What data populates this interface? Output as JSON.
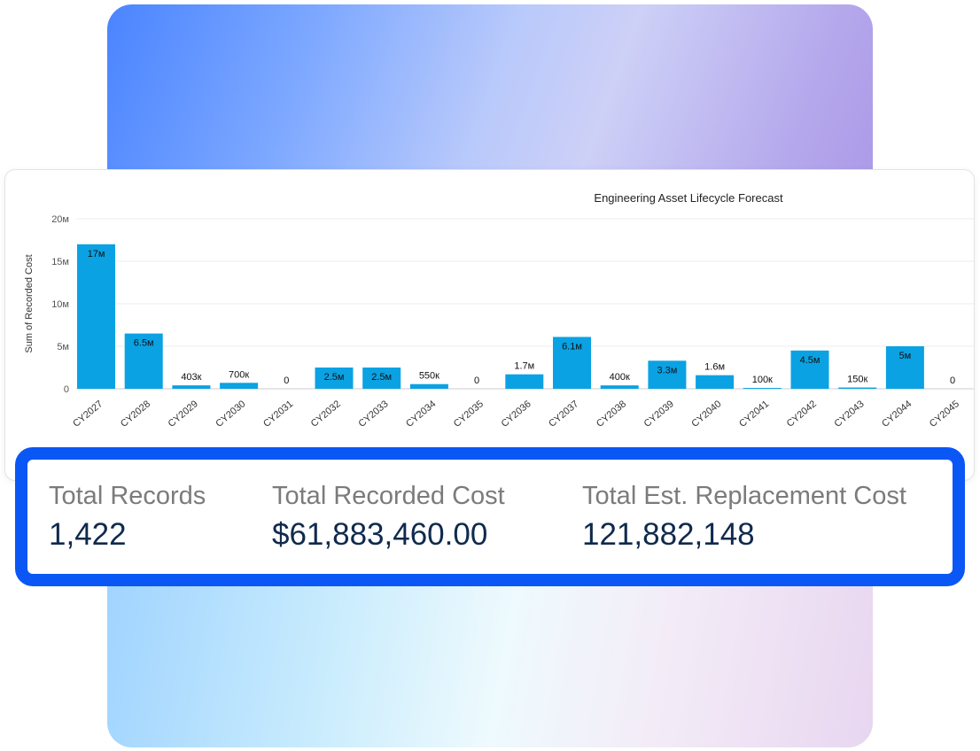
{
  "chart_data": {
    "type": "bar",
    "title": "Engineering Asset Lifecycle Forecast",
    "xlabel": "",
    "ylabel": "Sum of Recorded Cost",
    "ylim": [
      0,
      20000000
    ],
    "yticks": [
      {
        "value": 0,
        "label": "0"
      },
      {
        "value": 5000000,
        "label": "5м"
      },
      {
        "value": 10000000,
        "label": "10м"
      },
      {
        "value": 15000000,
        "label": "15м"
      },
      {
        "value": 20000000,
        "label": "20м"
      }
    ],
    "grid": true,
    "bar_color": "#0aa2e3",
    "categories": [
      "CY2027",
      "CY2028",
      "CY2029",
      "CY2030",
      "CY2031",
      "CY2032",
      "CY2033",
      "CY2034",
      "CY2035",
      "CY2036",
      "CY2037",
      "CY2038",
      "CY2039",
      "CY2040",
      "CY2041",
      "CY2042",
      "CY2043",
      "CY2044",
      "CY2045"
    ],
    "values": [
      17000000,
      6500000,
      403000,
      700000,
      0,
      2500000,
      2500000,
      550000,
      0,
      1700000,
      6100000,
      400000,
      3300000,
      1600000,
      100000,
      4500000,
      150000,
      5000000,
      0
    ],
    "data_labels": [
      "17м",
      "6.5м",
      "403к",
      "700к",
      "0",
      "2.5м",
      "2.5м",
      "550к",
      "0",
      "1.7м",
      "6.1м",
      "400к",
      "3.3м",
      "1.6м",
      "100к",
      "4.5м",
      "150к",
      "5м",
      "0"
    ]
  },
  "stats": [
    {
      "label": "Total Records",
      "value": "1,422"
    },
    {
      "label": "Total Recorded Cost",
      "value": "$61,883,460.00"
    },
    {
      "label": "Total Est. Replacement Cost",
      "value": "121,882,148"
    }
  ],
  "colors": {
    "accent": "#0b57f5",
    "value_text": "#0f2a4d",
    "label_text": "#7b7b7b"
  }
}
